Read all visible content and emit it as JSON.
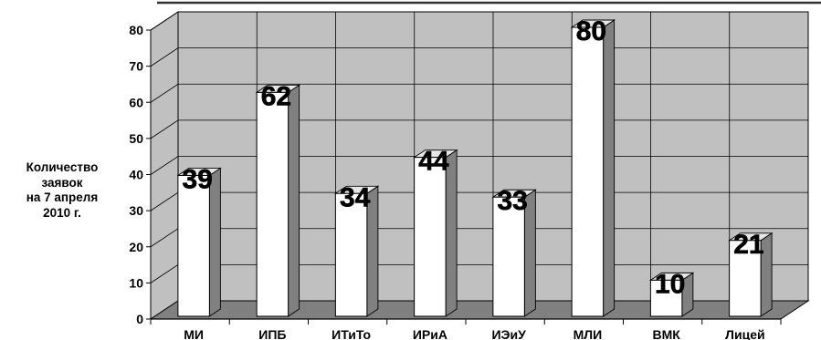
{
  "chart_data": {
    "type": "bar",
    "title": "",
    "xlabel": "",
    "ylabel": "Количество\nзаявок\nна 7 апреля\n2010 г.",
    "categories": [
      "МИ",
      "ИПБ",
      "ИТиТо",
      "ИРиА",
      "ИЭиУ",
      "МЛИ",
      "ВМК",
      "Лицей"
    ],
    "values": [
      39,
      62,
      34,
      44,
      33,
      80,
      10,
      21
    ],
    "ylim": [
      0,
      80
    ],
    "yticks": [
      "0",
      "10",
      "20",
      "30",
      "40",
      "50",
      "60",
      "70",
      "80"
    ],
    "grid": true,
    "three_d": true,
    "data_labels": [
      "39",
      "62",
      "34",
      "44",
      "33",
      "80",
      "10",
      "21"
    ],
    "colors": {
      "wall": "#c0c0c0",
      "floor": "#808080",
      "bar_front": "#ffffff",
      "bar_side": "#808080",
      "bar_top": "#e6e6e6",
      "grid": "#000000",
      "top_rule": "#333333"
    }
  }
}
